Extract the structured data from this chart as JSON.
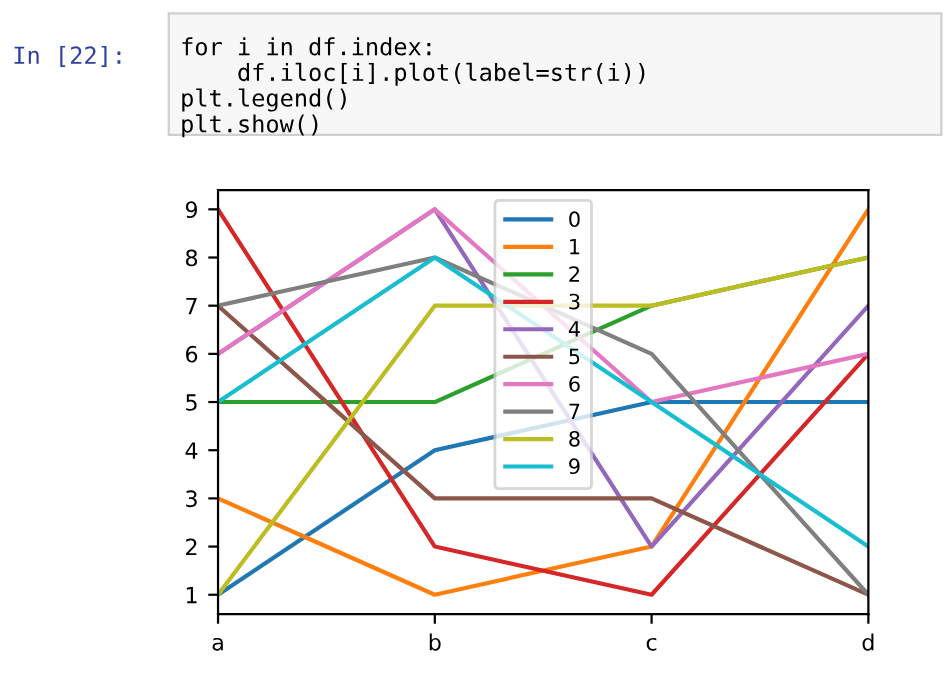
{
  "chart_data": {
    "type": "line",
    "categories": [
      "a",
      "b",
      "c",
      "d"
    ],
    "series": [
      {
        "name": "0",
        "color": "#1f77b4",
        "values": [
          1,
          4,
          5,
          5
        ]
      },
      {
        "name": "1",
        "color": "#ff7f0e",
        "values": [
          3,
          1,
          2,
          9
        ]
      },
      {
        "name": "2",
        "color": "#2ca02c",
        "values": [
          5,
          5,
          7,
          8
        ]
      },
      {
        "name": "3",
        "color": "#d62728",
        "values": [
          9,
          2,
          1,
          6
        ]
      },
      {
        "name": "4",
        "color": "#9467bd",
        "values": [
          6,
          9,
          2,
          7
        ]
      },
      {
        "name": "5",
        "color": "#8c564b",
        "values": [
          7,
          3,
          3,
          1
        ]
      },
      {
        "name": "6",
        "color": "#e377c2",
        "values": [
          6,
          9,
          5,
          6
        ]
      },
      {
        "name": "7",
        "color": "#7f7f7f",
        "values": [
          7,
          8,
          6,
          1
        ]
      },
      {
        "name": "8",
        "color": "#bcbd22",
        "values": [
          1,
          7,
          7,
          8
        ]
      },
      {
        "name": "9",
        "color": "#17becf",
        "values": [
          5,
          8,
          5,
          2
        ]
      }
    ],
    "ylim": [
      0.6,
      9.4
    ],
    "yticks": [
      1,
      2,
      3,
      4,
      5,
      6,
      7,
      8,
      9
    ],
    "legend": "top",
    "grid": false,
    "marker": "none",
    "line_style": "solid",
    "annotations": [
      "In [22]:",
      "for i in df.index:\n    df.iloc[i].plot(label=str(i))\nplt.legend()\nplt.show()"
    ]
  }
}
